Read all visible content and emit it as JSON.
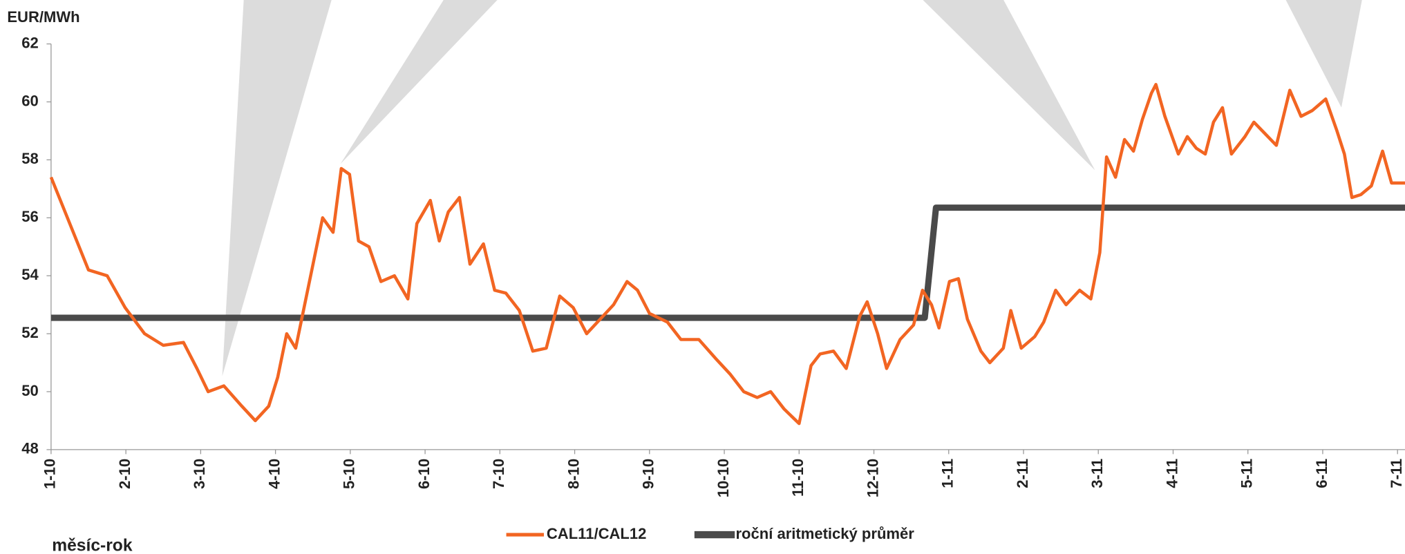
{
  "chart_data": {
    "type": "line",
    "y_axis_label": "EUR/MWh",
    "x_axis_label": "měsíc-rok",
    "xlim": [
      0,
      18.1
    ],
    "xticks": [
      {
        "value": 0,
        "label": "1-10"
      },
      {
        "value": 1,
        "label": "2-10"
      },
      {
        "value": 2,
        "label": "3-10"
      },
      {
        "value": 3,
        "label": "4-10"
      },
      {
        "value": 4,
        "label": "5-10"
      },
      {
        "value": 5,
        "label": "6-10"
      },
      {
        "value": 6,
        "label": "7-10"
      },
      {
        "value": 7,
        "label": "8-10"
      },
      {
        "value": 8,
        "label": "9-10"
      },
      {
        "value": 9,
        "label": "10-10"
      },
      {
        "value": 10,
        "label": "11-10"
      },
      {
        "value": 11,
        "label": "12-10"
      },
      {
        "value": 12,
        "label": "1-11"
      },
      {
        "value": 13,
        "label": "2-11"
      },
      {
        "value": 14,
        "label": "3-11"
      },
      {
        "value": 15,
        "label": "4-11"
      },
      {
        "value": 16,
        "label": "5-11"
      },
      {
        "value": 17,
        "label": "6-11"
      },
      {
        "value": 18,
        "label": "7-11"
      }
    ],
    "ylim": [
      48,
      62
    ],
    "yticks": [
      48,
      50,
      52,
      54,
      56,
      58,
      60,
      62
    ],
    "legend": "bottom",
    "series": [
      {
        "name": "CAL11/CAL12",
        "color": "#f26522",
        "x": [
          0,
          0.5,
          0.75,
          0.99,
          1.25,
          1.5,
          1.77,
          1.95,
          2.1,
          2.31,
          2.55,
          2.73,
          2.91,
          3.03,
          3.15,
          3.27,
          3.39,
          3.51,
          3.63,
          3.77,
          3.88,
          3.99,
          4.11,
          4.25,
          4.41,
          4.59,
          4.77,
          4.89,
          5.07,
          5.19,
          5.31,
          5.46,
          5.6,
          5.78,
          5.93,
          6.08,
          6.26,
          6.44,
          6.62,
          6.8,
          6.98,
          7.16,
          7.34,
          7.52,
          7.7,
          7.84,
          8.0,
          8.24,
          8.42,
          8.66,
          8.9,
          9.08,
          9.26,
          9.44,
          9.62,
          9.8,
          10.0,
          10.16,
          10.28,
          10.46,
          10.63,
          10.81,
          10.91,
          11.05,
          11.17,
          11.35,
          11.53,
          11.65,
          11.77,
          11.87,
          12.01,
          12.13,
          12.25,
          12.43,
          12.55,
          12.73,
          12.83,
          12.97,
          13.15,
          13.27,
          13.43,
          13.57,
          13.75,
          13.9,
          14.02,
          14.11,
          14.23,
          14.35,
          14.47,
          14.59,
          14.71,
          14.77,
          14.89,
          15.07,
          15.19,
          15.31,
          15.43,
          15.54,
          15.66,
          15.78,
          15.96,
          16.08,
          16.23,
          16.38,
          16.56,
          16.71,
          16.86,
          17.04,
          17.19,
          17.29,
          17.39,
          17.51,
          17.65,
          17.8,
          17.92,
          18.1
        ],
        "values": [
          57.4,
          54.2,
          54.0,
          52.9,
          52.0,
          51.6,
          51.7,
          50.8,
          50.0,
          50.2,
          49.5,
          49.0,
          49.5,
          50.5,
          52.0,
          51.5,
          53.0,
          54.5,
          56.0,
          55.5,
          57.7,
          57.5,
          55.2,
          55.0,
          53.8,
          54.0,
          53.2,
          55.8,
          56.6,
          55.2,
          56.2,
          56.7,
          54.4,
          55.1,
          53.5,
          53.4,
          52.8,
          51.4,
          51.5,
          53.3,
          52.9,
          52.0,
          52.5,
          53.0,
          53.8,
          53.5,
          52.7,
          52.4,
          51.8,
          51.8,
          51.1,
          50.6,
          50.0,
          49.8,
          50.0,
          49.4,
          48.9,
          50.9,
          51.3,
          51.4,
          50.8,
          52.6,
          53.1,
          52.0,
          50.8,
          51.8,
          52.3,
          53.5,
          53.0,
          52.2,
          53.8,
          53.9,
          52.5,
          51.4,
          51.0,
          51.5,
          52.8,
          51.5,
          51.9,
          52.4,
          53.5,
          53.0,
          53.5,
          53.2,
          54.8,
          58.1,
          57.4,
          58.7,
          58.3,
          59.4,
          60.3,
          60.6,
          59.5,
          58.2,
          58.8,
          58.4,
          58.2,
          59.3,
          59.8,
          58.2,
          58.8,
          59.3,
          58.9,
          58.5,
          60.4,
          59.5,
          59.7,
          60.1,
          59.0,
          58.2,
          56.7,
          56.8,
          57.1,
          58.3,
          57.2,
          57.2
        ]
      },
      {
        "name": "roční aritmetický průměr",
        "color": "#4a4a4a",
        "x": [
          0,
          11.68,
          11.83,
          18.1
        ],
        "values": [
          52.55,
          52.55,
          56.35,
          56.35
        ]
      }
    ]
  }
}
